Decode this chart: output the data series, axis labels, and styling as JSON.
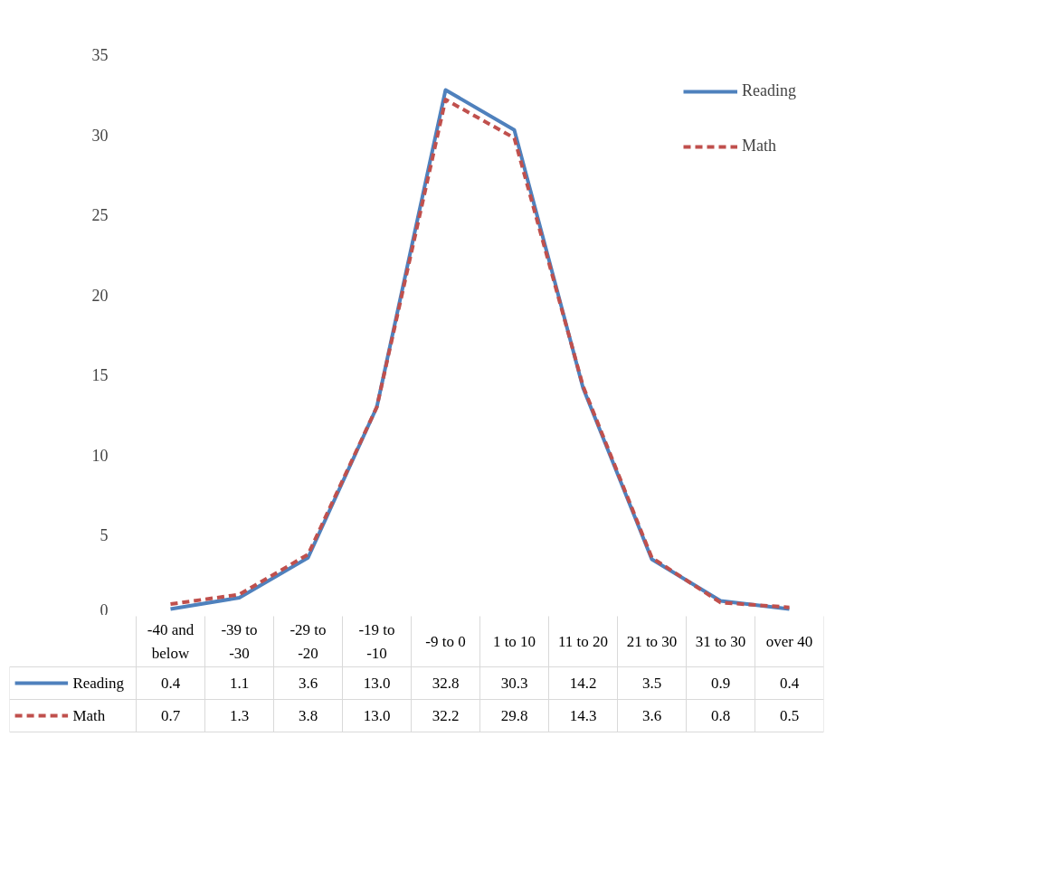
{
  "chart_data": {
    "type": "line",
    "categories": [
      "-40 and below",
      "-39 to -30",
      "-29 to -20",
      "-19 to -10",
      "-9 to 0",
      "1 to 10",
      "11 to 20",
      "21 to 30",
      "31 to 30",
      "over 40"
    ],
    "series": [
      {
        "name": "Reading",
        "color": "#4f81bd",
        "line_style": "solid",
        "values": [
          0.4,
          1.1,
          3.6,
          13.0,
          32.8,
          30.3,
          14.2,
          3.5,
          0.9,
          0.4
        ],
        "value_labels": [
          "0.4",
          "1.1",
          "3.6",
          "13.0",
          "32.8",
          "30.3",
          "14.2",
          "3.5",
          "0.9",
          "0.4"
        ]
      },
      {
        "name": "Math",
        "color": "#c0504d",
        "line_style": "dashed",
        "values": [
          0.7,
          1.3,
          3.8,
          13.0,
          32.2,
          29.8,
          14.3,
          3.6,
          0.8,
          0.5
        ],
        "value_labels": [
          "0.7",
          "1.3",
          "3.8",
          "13.0",
          "32.2",
          "29.8",
          "14.3",
          "3.6",
          "0.8",
          "0.5"
        ]
      }
    ],
    "ylim": [
      0,
      35
    ],
    "yticks": [
      0,
      5,
      10,
      15,
      20,
      25,
      30,
      35
    ],
    "grid": false,
    "legend": "top right",
    "marker": "none"
  }
}
